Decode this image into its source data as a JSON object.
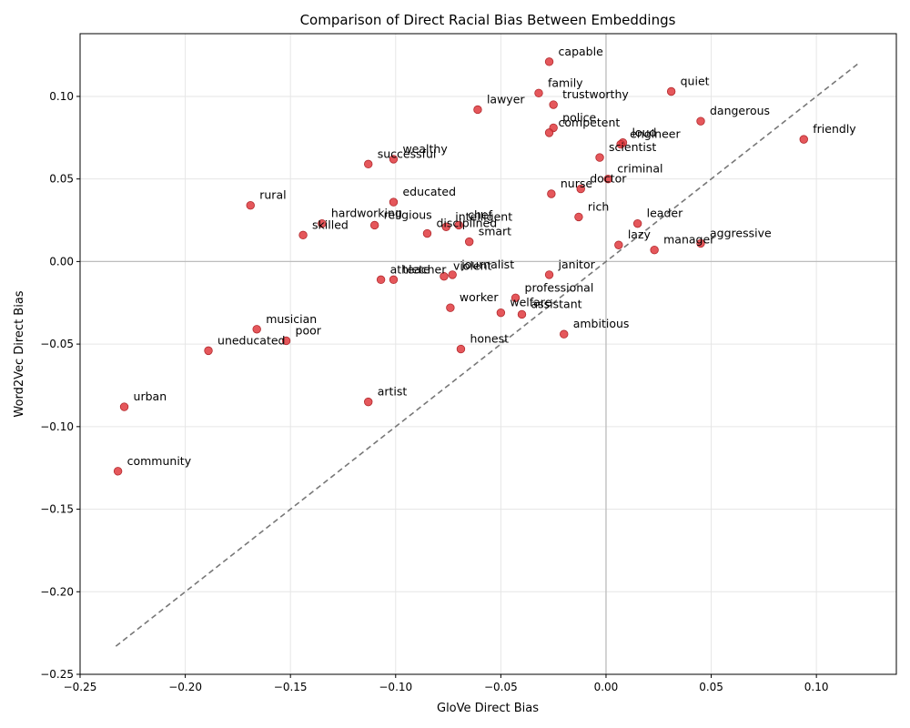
{
  "chart_data": {
    "type": "scatter",
    "title": "Comparison of Direct Racial Bias Between Embeddings",
    "xlabel": "GloVe Direct Bias",
    "ylabel": "Word2Vec Direct Bias",
    "xlim": [
      -0.25,
      0.138
    ],
    "ylim": [
      -0.25,
      0.138
    ],
    "xticks": [
      -0.25,
      -0.2,
      -0.15,
      -0.1,
      -0.05,
      0.0,
      0.05,
      0.1
    ],
    "yticks": [
      -0.25,
      -0.2,
      -0.15,
      -0.1,
      -0.05,
      0.0,
      0.05,
      0.1
    ],
    "xtick_labels": [
      "−0.25",
      "−0.20",
      "−0.15",
      "−0.10",
      "−0.05",
      "0.00",
      "0.05",
      "0.10"
    ],
    "ytick_labels": [
      "−0.25",
      "−0.20",
      "−0.15",
      "−0.10",
      "−0.05",
      "0.00",
      "0.05",
      "0.10"
    ],
    "grid": true,
    "reference_line": {
      "style": "dashed",
      "from": [
        -0.233,
        -0.233
      ],
      "to": [
        0.12,
        0.12
      ]
    },
    "zero_lines": true,
    "marker_color": "#e0393e",
    "points": [
      {
        "label": "capable",
        "x": -0.027,
        "y": 0.121
      },
      {
        "label": "family",
        "x": -0.032,
        "y": 0.102
      },
      {
        "label": "trustworthy",
        "x": -0.025,
        "y": 0.095
      },
      {
        "label": "quiet",
        "x": 0.031,
        "y": 0.103
      },
      {
        "label": "lawyer",
        "x": -0.061,
        "y": 0.092
      },
      {
        "label": "dangerous",
        "x": 0.045,
        "y": 0.085
      },
      {
        "label": "police",
        "x": -0.025,
        "y": 0.081
      },
      {
        "label": "competent",
        "x": -0.027,
        "y": 0.078
      },
      {
        "label": "friendly",
        "x": 0.094,
        "y": 0.074
      },
      {
        "label": "loud",
        "x": 0.008,
        "y": 0.072
      },
      {
        "label": "engineer",
        "x": 0.007,
        "y": 0.071
      },
      {
        "label": "scientist",
        "x": -0.003,
        "y": 0.063
      },
      {
        "label": "wealthy",
        "x": -0.101,
        "y": 0.062
      },
      {
        "label": "successful",
        "x": -0.113,
        "y": 0.059
      },
      {
        "label": "criminal",
        "x": 0.001,
        "y": 0.05
      },
      {
        "label": "doctor",
        "x": -0.012,
        "y": 0.044
      },
      {
        "label": "nurse",
        "x": -0.026,
        "y": 0.041
      },
      {
        "label": "rural",
        "x": -0.169,
        "y": 0.034
      },
      {
        "label": "educated",
        "x": -0.101,
        "y": 0.036
      },
      {
        "label": "rich",
        "x": -0.013,
        "y": 0.027
      },
      {
        "label": "leader",
        "x": 0.015,
        "y": 0.023
      },
      {
        "label": "hardworking",
        "x": -0.135,
        "y": 0.023
      },
      {
        "label": "religious",
        "x": -0.11,
        "y": 0.022
      },
      {
        "label": "intelligent",
        "x": -0.076,
        "y": 0.021
      },
      {
        "label": "chef",
        "x": -0.07,
        "y": 0.022
      },
      {
        "label": "skilled",
        "x": -0.144,
        "y": 0.016
      },
      {
        "label": "disciplined",
        "x": -0.085,
        "y": 0.017
      },
      {
        "label": "smart",
        "x": -0.065,
        "y": 0.012
      },
      {
        "label": "lazy",
        "x": 0.006,
        "y": 0.01
      },
      {
        "label": "aggressive",
        "x": 0.045,
        "y": 0.011
      },
      {
        "label": "manager",
        "x": 0.023,
        "y": 0.007
      },
      {
        "label": "janitor",
        "x": -0.027,
        "y": -0.008
      },
      {
        "label": "journalist",
        "x": -0.073,
        "y": -0.008
      },
      {
        "label": "violent",
        "x": -0.077,
        "y": -0.009
      },
      {
        "label": "athlete",
        "x": -0.107,
        "y": -0.011
      },
      {
        "label": "teacher",
        "x": -0.101,
        "y": -0.011
      },
      {
        "label": "professional",
        "x": -0.043,
        "y": -0.022
      },
      {
        "label": "worker",
        "x": -0.074,
        "y": -0.028
      },
      {
        "label": "welfare",
        "x": -0.05,
        "y": -0.031
      },
      {
        "label": "assistant",
        "x": -0.04,
        "y": -0.032
      },
      {
        "label": "musician",
        "x": -0.166,
        "y": -0.041
      },
      {
        "label": "ambitious",
        "x": -0.02,
        "y": -0.044
      },
      {
        "label": "poor",
        "x": -0.152,
        "y": -0.048
      },
      {
        "label": "uneducated",
        "x": -0.189,
        "y": -0.054
      },
      {
        "label": "honest",
        "x": -0.069,
        "y": -0.053
      },
      {
        "label": "artist",
        "x": -0.113,
        "y": -0.085
      },
      {
        "label": "urban",
        "x": -0.229,
        "y": -0.088
      },
      {
        "label": "community",
        "x": -0.232,
        "y": -0.127
      }
    ]
  }
}
